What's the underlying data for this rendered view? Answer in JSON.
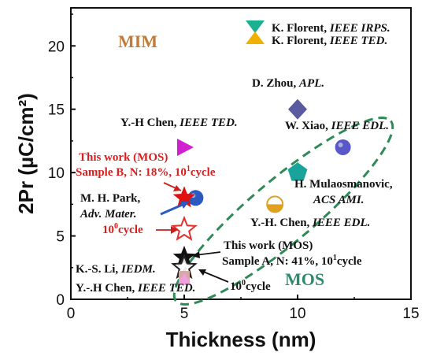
{
  "chart_data": {
    "type": "scatter",
    "xlabel": "Thickness (nm)",
    "ylabel": "2Pr (µC/cm²)",
    "xlim": [
      0,
      15
    ],
    "ylim": [
      0,
      23
    ],
    "x_ticks": [
      "0",
      "5",
      "10",
      "15"
    ],
    "y_ticks": [
      "0",
      "5",
      "10",
      "15",
      "20"
    ],
    "regions": [
      {
        "label": "MIM",
        "color": "#c07a3a"
      },
      {
        "label": "MOS",
        "color": "#2e8b6a"
      }
    ],
    "points": [
      {
        "x": 10,
        "y": 15,
        "shape": "diamond",
        "color": "#5a5aa0"
      },
      {
        "x": 12,
        "y": 12,
        "shape": "circle",
        "color": "#5858c8"
      },
      {
        "x": 5,
        "y": 12,
        "shape": "triangle-right",
        "color": "#d020d0"
      },
      {
        "x": 10,
        "y": 10,
        "shape": "pentagon",
        "color": "#1aa39a"
      },
      {
        "x": 5.5,
        "y": 8,
        "shape": "circle",
        "color": "#2a5ac0"
      },
      {
        "x": 5,
        "y": 8,
        "shape": "star",
        "color": "#e01010"
      },
      {
        "x": 9,
        "y": 7.5,
        "shape": "half-circle",
        "color": "#e0a020"
      },
      {
        "x": 5,
        "y": 5.5,
        "shape": "star-open",
        "color": "#e03030"
      },
      {
        "x": 5,
        "y": 3.3,
        "shape": "star",
        "color": "#111111"
      },
      {
        "x": 5,
        "y": 2.5,
        "shape": "star-open",
        "color": "#222222"
      },
      {
        "x": 5,
        "y": 1.8,
        "shape": "square",
        "color": "#d8a8a8"
      },
      {
        "x": 5,
        "y": 1.5,
        "shape": "triangle-up",
        "color": "#f0a0e0"
      }
    ],
    "legend": [
      {
        "label_plain": "K. Florent, ",
        "label_italic": "IEEE IRPS.",
        "shape": "triangle-down",
        "color": "#1ab090"
      },
      {
        "label_plain": "K. Florent, ",
        "label_italic": "IEEE TED.",
        "shape": "triangle-up",
        "color": "#f0b000"
      }
    ],
    "annotations": {
      "zhou": {
        "plain": "D. Zhou, ",
        "italic": "APL."
      },
      "chen1": {
        "plain": "Y.-H Chen, ",
        "italic": "IEEE TED."
      },
      "xiao": {
        "plain": "W. Xiao, ",
        "italic": "IEEE EDL."
      },
      "thiswork_b_1": "This work (MOS)",
      "thiswork_b_2": "Sample B, N: 18%, 10",
      "thiswork_b_sup": "1",
      "thiswork_b_end": "cycle",
      "mulao_1": "H. Mulaosmanovic,",
      "mulao_2": "ACS AMI.",
      "park_1": "M. H. Park,",
      "park_2": "Adv. Mater.",
      "chen2": {
        "plain": "Y.-H. Chen, ",
        "italic": "IEEE EDL."
      },
      "b_cycle0": "10",
      "b_cycle0_sup": "0",
      "b_cycle0_end": "cycle",
      "thiswork_a_1": "This work (MOS)",
      "thiswork_a_2": "Sample A, N: 41%, 10",
      "thiswork_a_sup": "1",
      "thiswork_a_end": "cycle",
      "li": {
        "plain": "K.-S. Li, ",
        "italic": "IEDM."
      },
      "chen3": {
        "plain": "Y.-.H Chen, ",
        "italic": "IEEE TED."
      },
      "a_cycle0": "10",
      "a_cycle0_sup": "0",
      "a_cycle0_end": "cycle"
    }
  }
}
